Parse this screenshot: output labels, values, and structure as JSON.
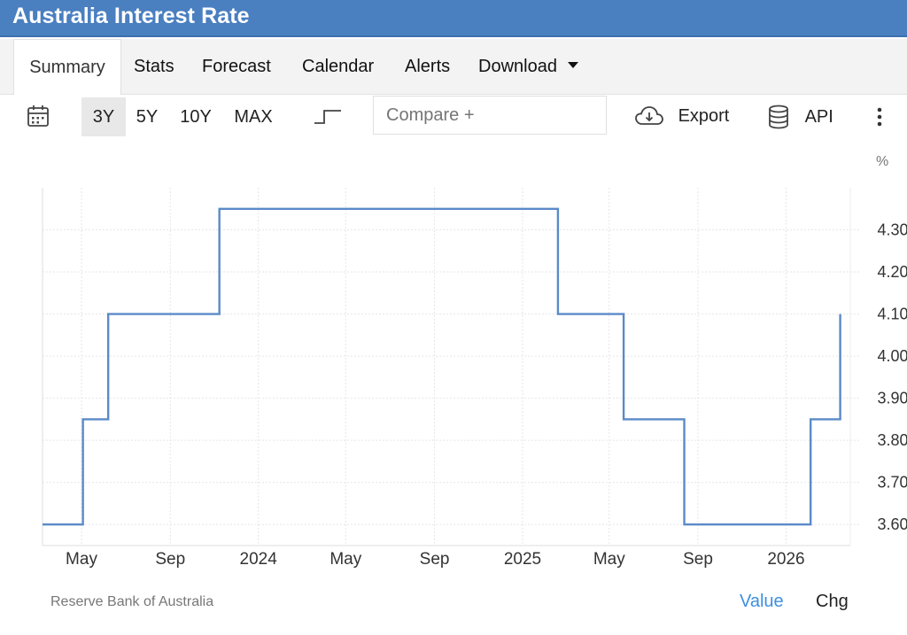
{
  "page_title": "Australia Interest Rate",
  "tabs": [
    {
      "label": "Summary"
    },
    {
      "label": "Stats"
    },
    {
      "label": "Forecast"
    },
    {
      "label": "Calendar"
    },
    {
      "label": "Alerts"
    },
    {
      "label": "Download"
    }
  ],
  "toolbar": {
    "ranges": [
      "3Y",
      "5Y",
      "10Y",
      "MAX"
    ],
    "active_range": "3Y",
    "compare_placeholder": "Compare +",
    "export_label": "Export",
    "api_label": "API",
    "icons": {
      "calendar": "calendar-icon",
      "step_chart": "step-chart-icon",
      "export": "cloud-download-icon",
      "api": "database-icon",
      "more": "more-vertical-icon"
    }
  },
  "chart_data": {
    "type": "line",
    "step": true,
    "unit": "%",
    "x_ticks": [
      "May",
      "Sep",
      "2024",
      "May",
      "Sep",
      "2025",
      "May",
      "Sep",
      "2026"
    ],
    "y_ticks": [
      "3.60",
      "3.70",
      "3.80",
      "3.90",
      "4.00",
      "4.10",
      "4.20",
      "4.30"
    ],
    "ylim": [
      3.55,
      4.4
    ],
    "xlim": [
      "2023-03-08",
      "2026-03-31"
    ],
    "grid": true,
    "line_color": "#5b8ac8",
    "series": [
      {
        "points": [
          {
            "x": "2023-03-08",
            "y": 3.6
          },
          {
            "x": "2023-05-03",
            "y": 3.85
          },
          {
            "x": "2023-06-07",
            "y": 4.1
          },
          {
            "x": "2023-11-08",
            "y": 4.35
          },
          {
            "x": "2025-02-19",
            "y": 4.1
          },
          {
            "x": "2025-05-21",
            "y": 3.85
          },
          {
            "x": "2025-08-13",
            "y": 3.6
          },
          {
            "x": "2026-02-04",
            "y": 3.85
          },
          {
            "x": "2026-03-17",
            "y": 4.1
          }
        ]
      }
    ]
  },
  "footer": {
    "source": "Reserve Bank of Australia",
    "value_label": "Value",
    "chg_label": "Chg"
  }
}
